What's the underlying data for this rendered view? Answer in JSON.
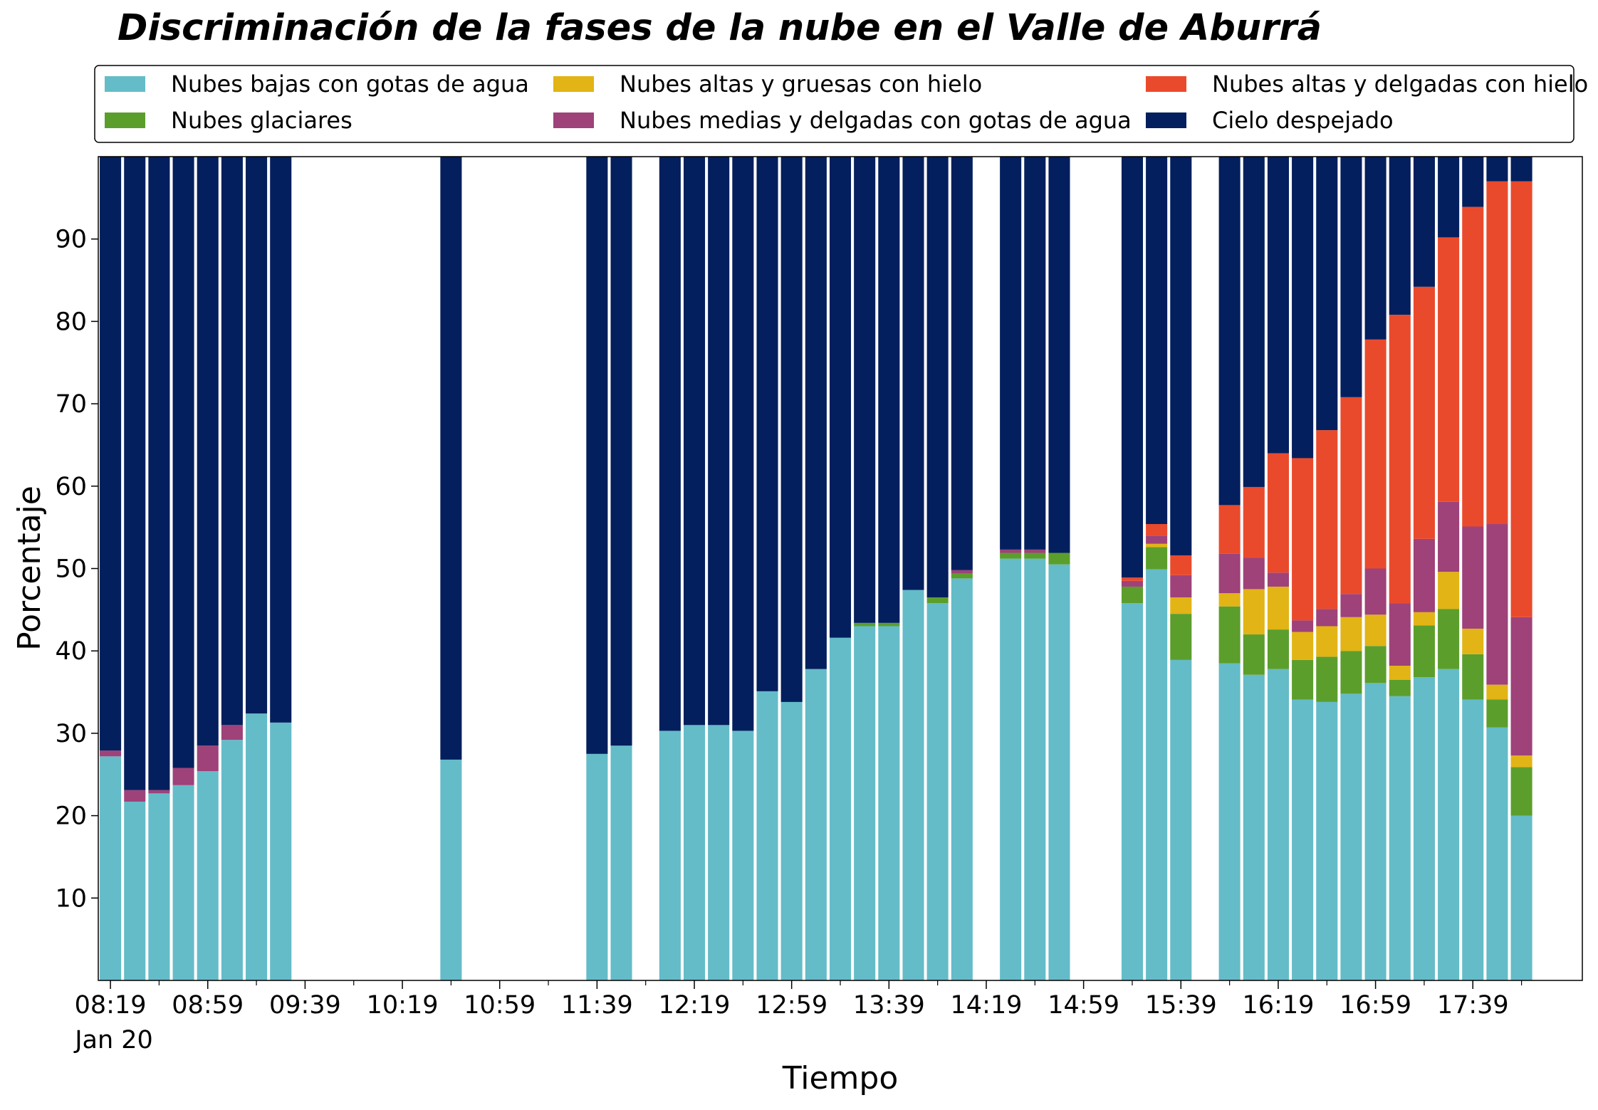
{
  "chart_data": {
    "type": "bar",
    "stacked": true,
    "title": "Discriminación de la fases de la nube en el Valle de Aburrá",
    "xlabel": "Tiempo",
    "ylabel": "Porcentaje",
    "ylim": [
      0,
      100
    ],
    "yticks": [
      10,
      20,
      30,
      40,
      50,
      60,
      70,
      80,
      90
    ],
    "xlim": [
      0,
      60
    ],
    "date_label": "Jan 20",
    "xticks": [
      {
        "x": 0,
        "label": "08:19"
      },
      {
        "x": 4,
        "label": "08:59"
      },
      {
        "x": 8,
        "label": "09:39"
      },
      {
        "x": 12,
        "label": "10:19"
      },
      {
        "x": 16,
        "label": "10:59"
      },
      {
        "x": 20,
        "label": "11:39"
      },
      {
        "x": 24,
        "label": "12:19"
      },
      {
        "x": 28,
        "label": "12:59"
      },
      {
        "x": 32,
        "label": "13:39"
      },
      {
        "x": 36,
        "label": "14:19"
      },
      {
        "x": 40,
        "label": "14:59"
      },
      {
        "x": 44,
        "label": "15:39"
      },
      {
        "x": 48,
        "label": "16:19"
      },
      {
        "x": 52,
        "label": "16:59"
      },
      {
        "x": 56,
        "label": "17:39"
      }
    ],
    "minor_ticks": [
      2,
      6,
      10,
      14,
      18,
      22,
      26,
      30,
      34,
      38,
      42,
      46,
      50,
      54,
      58
    ],
    "grid": false,
    "legend_position": "top",
    "series": [
      {
        "name": "Nubes bajas con gotas de agua",
        "color": "#64bcc8"
      },
      {
        "name": "Nubes glaciares",
        "color": "#5c9e2c"
      },
      {
        "name": "Nubes altas y gruesas con hielo",
        "color": "#e2b415"
      },
      {
        "name": "Nubes medias y delgadas con gotas de agua",
        "color": "#9e4279"
      },
      {
        "name": "Nubes altas y delgadas con hielo",
        "color": "#ea4a2c"
      },
      {
        "name": "Cielo despejado",
        "color": "#041f5d"
      }
    ],
    "bars": [
      {
        "x": 0,
        "values": [
          27.2,
          0,
          0,
          0.7,
          0,
          72.1
        ]
      },
      {
        "x": 1,
        "values": [
          21.7,
          0,
          0,
          1.4,
          0,
          76.9
        ]
      },
      {
        "x": 2,
        "values": [
          22.7,
          0,
          0,
          0.4,
          0,
          76.9
        ]
      },
      {
        "x": 3,
        "values": [
          23.7,
          0,
          0,
          2.1,
          0,
          74.2
        ]
      },
      {
        "x": 4,
        "values": [
          25.4,
          0,
          0,
          3.1,
          0,
          71.5
        ]
      },
      {
        "x": 5,
        "values": [
          29.2,
          0,
          0,
          1.8,
          0,
          69.0
        ]
      },
      {
        "x": 6,
        "values": [
          32.4,
          0,
          0,
          0,
          0,
          67.6
        ]
      },
      {
        "x": 7,
        "values": [
          31.3,
          0,
          0,
          0,
          0,
          68.7
        ]
      },
      {
        "x": 14,
        "values": [
          26.8,
          0,
          0,
          0,
          0,
          73.2
        ]
      },
      {
        "x": 20,
        "values": [
          27.5,
          0,
          0,
          0,
          0,
          72.5
        ]
      },
      {
        "x": 21,
        "values": [
          28.5,
          0,
          0,
          0,
          0,
          71.5
        ]
      },
      {
        "x": 23,
        "values": [
          30.3,
          0,
          0,
          0,
          0,
          69.7
        ]
      },
      {
        "x": 24,
        "values": [
          31.0,
          0,
          0,
          0,
          0,
          69.0
        ]
      },
      {
        "x": 25,
        "values": [
          31.0,
          0,
          0,
          0,
          0,
          69.0
        ]
      },
      {
        "x": 26,
        "values": [
          30.3,
          0,
          0,
          0,
          0,
          69.7
        ]
      },
      {
        "x": 27,
        "values": [
          35.1,
          0,
          0,
          0,
          0,
          64.9
        ]
      },
      {
        "x": 28,
        "values": [
          33.8,
          0,
          0,
          0,
          0,
          66.2
        ]
      },
      {
        "x": 29,
        "values": [
          37.8,
          0,
          0,
          0,
          0,
          62.2
        ]
      },
      {
        "x": 30,
        "values": [
          41.6,
          0,
          0,
          0,
          0,
          58.4
        ]
      },
      {
        "x": 31,
        "values": [
          43.0,
          0.4,
          0,
          0,
          0,
          56.6
        ]
      },
      {
        "x": 32,
        "values": [
          43.0,
          0.4,
          0,
          0,
          0,
          56.6
        ]
      },
      {
        "x": 33,
        "values": [
          47.4,
          0,
          0,
          0,
          0,
          52.6
        ]
      },
      {
        "x": 34,
        "values": [
          45.8,
          0.7,
          0,
          0,
          0,
          53.5
        ]
      },
      {
        "x": 35,
        "values": [
          48.8,
          0.6,
          0,
          0.4,
          0,
          50.2
        ]
      },
      {
        "x": 37,
        "values": [
          51.2,
          0.7,
          0,
          0.4,
          0,
          47.7
        ]
      },
      {
        "x": 38,
        "values": [
          51.2,
          0.7,
          0,
          0.4,
          0,
          47.7
        ]
      },
      {
        "x": 39,
        "values": [
          50.5,
          1.4,
          0,
          0,
          0,
          48.1
        ]
      },
      {
        "x": 42,
        "values": [
          45.8,
          2.0,
          0,
          0.7,
          0.4,
          51.1
        ]
      },
      {
        "x": 43,
        "values": [
          49.9,
          2.7,
          0.4,
          1.0,
          1.4,
          44.6
        ]
      },
      {
        "x": 44,
        "values": [
          38.9,
          5.6,
          2.0,
          2.7,
          2.4,
          48.4
        ]
      },
      {
        "x": 46,
        "values": [
          38.5,
          6.9,
          1.6,
          4.8,
          5.9,
          42.3
        ]
      },
      {
        "x": 47,
        "values": [
          37.1,
          4.9,
          5.5,
          3.8,
          8.6,
          40.1
        ]
      },
      {
        "x": 48,
        "values": [
          37.8,
          4.8,
          5.2,
          1.7,
          14.5,
          36.0
        ]
      },
      {
        "x": 49,
        "values": [
          34.1,
          4.8,
          3.4,
          1.4,
          19.7,
          36.6
        ]
      },
      {
        "x": 50,
        "values": [
          33.8,
          5.5,
          3.7,
          2.1,
          21.7,
          33.2
        ]
      },
      {
        "x": 51,
        "values": [
          34.8,
          5.2,
          4.1,
          2.8,
          23.9,
          29.2
        ]
      },
      {
        "x": 52,
        "values": [
          36.1,
          4.5,
          3.8,
          5.6,
          27.8,
          22.2
        ]
      },
      {
        "x": 53,
        "values": [
          34.5,
          2.0,
          1.7,
          7.6,
          35.0,
          19.2
        ]
      },
      {
        "x": 54,
        "values": [
          36.8,
          6.3,
          1.6,
          8.9,
          30.6,
          15.8
        ]
      },
      {
        "x": 55,
        "values": [
          37.8,
          7.3,
          4.5,
          8.5,
          32.1,
          9.8
        ]
      },
      {
        "x": 56,
        "values": [
          34.1,
          5.5,
          3.1,
          12.4,
          38.8,
          6.1
        ]
      },
      {
        "x": 57,
        "values": [
          30.7,
          3.4,
          1.8,
          19.5,
          41.6,
          3.0
        ]
      },
      {
        "x": 58,
        "values": [
          20.0,
          5.9,
          1.4,
          16.8,
          52.9,
          3.0
        ]
      }
    ]
  }
}
